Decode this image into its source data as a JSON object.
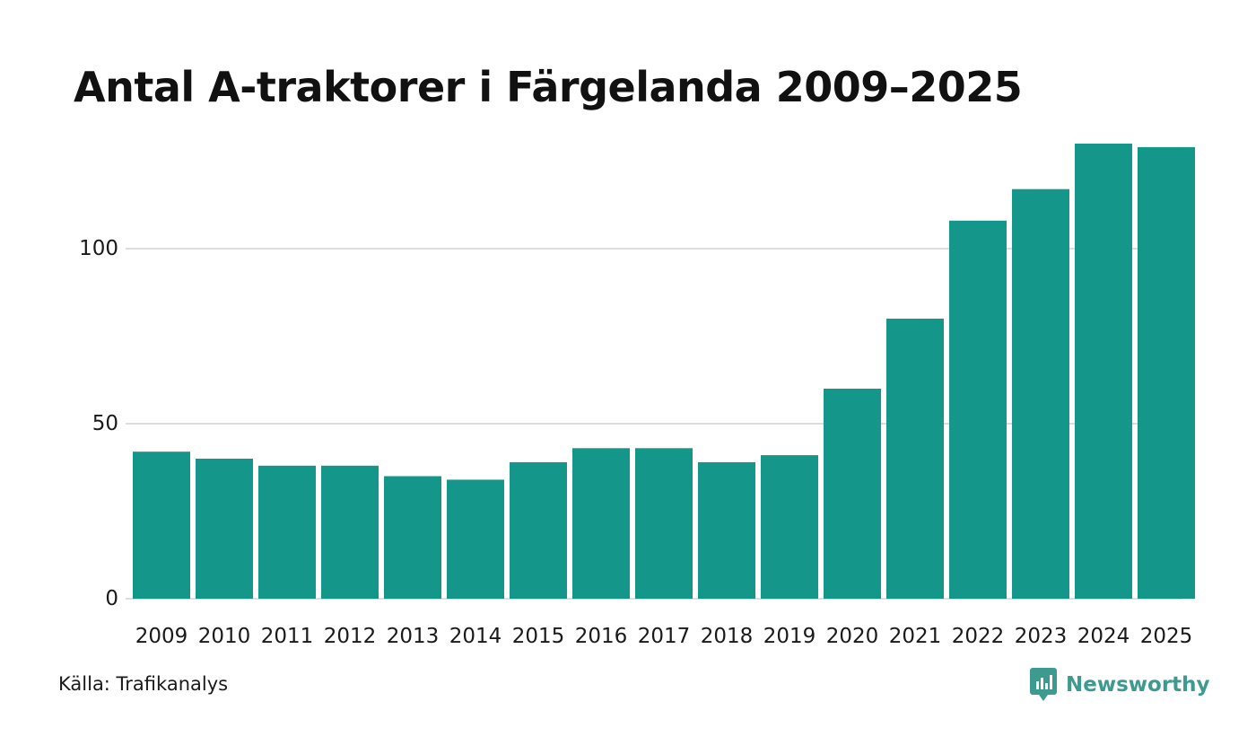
{
  "title": "Antal A-traktorer i Färgelanda 2009–2025",
  "source": "Källa: Trafikanalys",
  "brand": "Newsworthy",
  "colors": {
    "bar": "#15968a",
    "grid": "#dddddd",
    "brand": "#3d9a8f"
  },
  "icons": {
    "brand_logo": "bar-chart-speech-bubble-icon"
  },
  "chart_data": {
    "type": "bar",
    "title": "Antal A-traktorer i Färgelanda 2009–2025",
    "xlabel": "",
    "ylabel": "",
    "categories": [
      "2009",
      "2010",
      "2011",
      "2012",
      "2013",
      "2014",
      "2015",
      "2016",
      "2017",
      "2018",
      "2019",
      "2020",
      "2021",
      "2022",
      "2023",
      "2024",
      "2025"
    ],
    "values": [
      42,
      40,
      38,
      38,
      35,
      34,
      39,
      43,
      43,
      39,
      41,
      60,
      80,
      108,
      117,
      130,
      129
    ],
    "ylim": [
      0,
      130
    ],
    "yticks": [
      "0",
      "50",
      "100"
    ],
    "grid": true
  }
}
